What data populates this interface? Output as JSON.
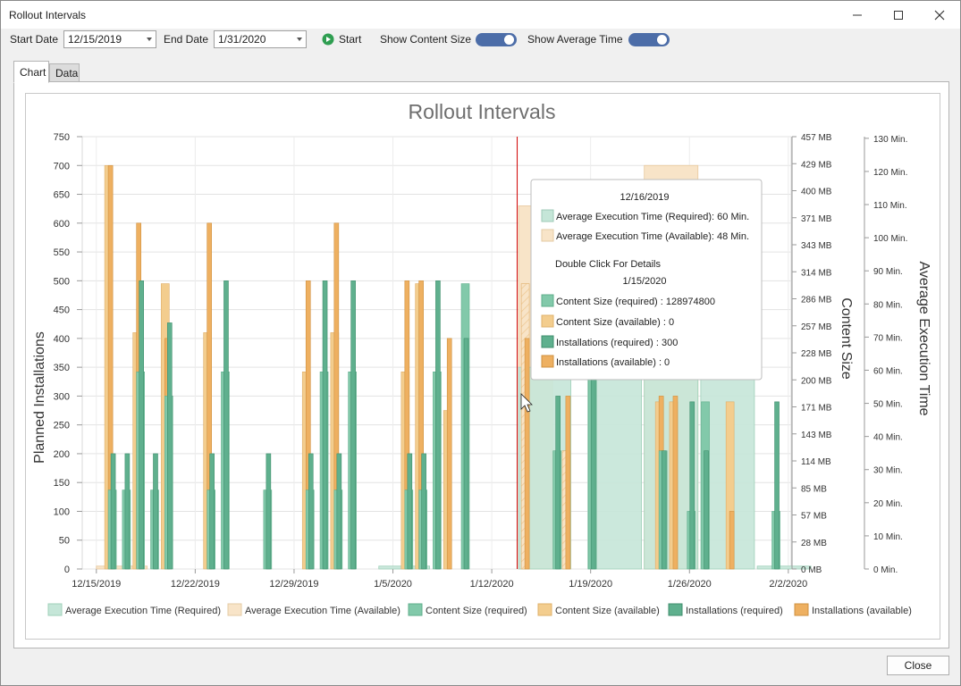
{
  "window": {
    "title": "Rollout Intervals"
  },
  "toolbar": {
    "start_date_label": "Start Date",
    "start_date_value": "12/15/2019",
    "end_date_label": "End Date",
    "end_date_value": "1/31/2020",
    "start_button": "Start",
    "show_content_size_label": "Show Content Size",
    "show_content_size_on": true,
    "show_average_time_label": "Show Average Time",
    "show_average_time_on": true
  },
  "tabs": [
    {
      "label": "Chart",
      "active": true
    },
    {
      "label": "Data",
      "active": false
    }
  ],
  "footer": {
    "close_label": "Close"
  },
  "colors": {
    "avg_required": "#c5e6d8",
    "avg_available": "#f8e4c8",
    "content_required": "#82c9aa",
    "content_available": "#f3cd8e",
    "install_required": "#5fb08e",
    "install_available": "#eeb061",
    "crosshair": "#d00000"
  },
  "tooltip": {
    "date1": "12/16/2019",
    "line1": "Average Execution Time (Required): 60 Min.",
    "line2": "Average Execution Time (Available): 48 Min.",
    "hint": "Double Click For Details",
    "date2": "1/15/2020",
    "line3": "Content Size (required) : 128974800",
    "line4": "Content Size (available) : 0",
    "line5": "Installations (required) : 300",
    "line6": "Installations (available) : 0"
  },
  "chart_data": {
    "type": "bar",
    "title": "Rollout Intervals",
    "ylabel": "Planned Installations",
    "y2label": "Content Size",
    "y3label": "Average Execution Time",
    "ylim": [
      0,
      750
    ],
    "yticks": [
      0,
      50,
      100,
      150,
      200,
      250,
      300,
      350,
      400,
      450,
      500,
      550,
      600,
      650,
      700,
      750
    ],
    "y2ticks": [
      "0 MB",
      "28 MB",
      "57 MB",
      "85 MB",
      "114 MB",
      "143 MB",
      "171 MB",
      "200 MB",
      "228 MB",
      "257 MB",
      "286 MB",
      "314 MB",
      "343 MB",
      "371 MB",
      "400 MB",
      "429 MB",
      "457 MB"
    ],
    "y3ticks": [
      "0 Min.",
      "10 Min.",
      "20 Min.",
      "30 Min.",
      "40 Min.",
      "50 Min.",
      "60 Min.",
      "70 Min.",
      "80 Min.",
      "90 Min.",
      "100 Min.",
      "110 Min.",
      "120 Min.",
      "130 Min."
    ],
    "xticks": [
      "12/15/2019",
      "12/22/2019",
      "12/29/2019",
      "1/5/2020",
      "1/12/2020",
      "1/19/2020",
      "1/26/2020",
      "2/2/2020"
    ],
    "xrange_days": [
      -1.0,
      49.2
    ],
    "crosshair_day": 29.8,
    "legend_position": "bottom",
    "legend": [
      "Average Execution Time (Required)",
      "Average Execution Time (Available)",
      "Content Size (required)",
      "Content Size (available)",
      "Installations (required)",
      "Installations (available)"
    ],
    "avg_required": [
      {
        "x0": 29.9,
        "x1": 33.6,
        "y": 350
      },
      {
        "x0": 34.8,
        "x1": 38.6,
        "y": 350
      },
      {
        "x0": 38.8,
        "x1": 42.6,
        "y": 350
      },
      {
        "x0": 42.8,
        "x1": 46.6,
        "y": 350
      },
      {
        "x0": 46.8,
        "x1": 50.6,
        "y": 5
      },
      {
        "x0": 20.0,
        "x1": 23.6,
        "y": 5
      }
    ],
    "avg_available": [
      {
        "x0": 29.9,
        "x1": 32.3,
        "y": 630
      },
      {
        "x0": 38.8,
        "x1": 42.6,
        "y": 700
      },
      {
        "x0": 0.0,
        "x1": 3.6,
        "y": 5
      }
    ],
    "bars": [
      {
        "x": 1.0,
        "content_available": 700,
        "install_available": 700,
        "install_required": 200,
        "content_required": 137
      },
      {
        "x": 2.0,
        "install_required": 200,
        "content_required": 137
      },
      {
        "x": 3.0,
        "content_available": 410,
        "install_available": 600,
        "install_required": 500,
        "content_required": 342
      },
      {
        "x": 4.0,
        "install_required": 200,
        "content_required": 137
      },
      {
        "x": 5.0,
        "content_available": 495,
        "install_available": 400,
        "install_required": 427,
        "content_required": 300
      },
      {
        "x": 8.0,
        "content_available": 410,
        "install_available": 600,
        "install_required": 200,
        "content_required": 137
      },
      {
        "x": 9.0,
        "install_required": 500,
        "content_required": 342
      },
      {
        "x": 12.0,
        "install_required": 200,
        "content_required": 137
      },
      {
        "x": 15.0,
        "content_available": 342,
        "install_available": 500,
        "install_required": 200,
        "content_required": 137
      },
      {
        "x": 16.0,
        "install_required": 500,
        "content_required": 342
      },
      {
        "x": 17.0,
        "content_available": 410,
        "install_available": 600,
        "install_required": 200,
        "content_required": 137
      },
      {
        "x": 18.0,
        "install_required": 500,
        "content_required": 342
      },
      {
        "x": 22.0,
        "content_available": 342,
        "install_available": 500,
        "install_required": 200,
        "content_required": 137
      },
      {
        "x": 23.0,
        "content_available": 495,
        "install_available": 500,
        "install_required": 200,
        "content_required": 137
      },
      {
        "x": 24.0,
        "install_required": 500,
        "content_required": 342
      },
      {
        "x": 25.0,
        "content_available": 275,
        "install_available": 400
      },
      {
        "x": 26.0,
        "content_required": 495,
        "install_required": 400
      },
      {
        "x": 30.5,
        "content_available": 495,
        "install_available": 400
      },
      {
        "x": 32.5,
        "content_required": 205,
        "install_required": 300
      },
      {
        "x": 33.4,
        "content_available": 205,
        "install_available": 300
      },
      {
        "x": 35.0,
        "install_required": 350,
        "content_required": 342
      },
      {
        "x": 40.0,
        "content_available": 290,
        "install_available": 300,
        "install_required": 205,
        "content_required": 205
      },
      {
        "x": 41.0,
        "content_available": 290,
        "install_available": 300
      },
      {
        "x": 42.0,
        "install_required": 290,
        "content_required": 100
      },
      {
        "x": 43.0,
        "content_required": 290,
        "install_required": 205
      },
      {
        "x": 45.0,
        "content_available": 290,
        "install_available": 100
      },
      {
        "x": 48.0,
        "install_required": 290,
        "content_required": 100
      }
    ]
  }
}
